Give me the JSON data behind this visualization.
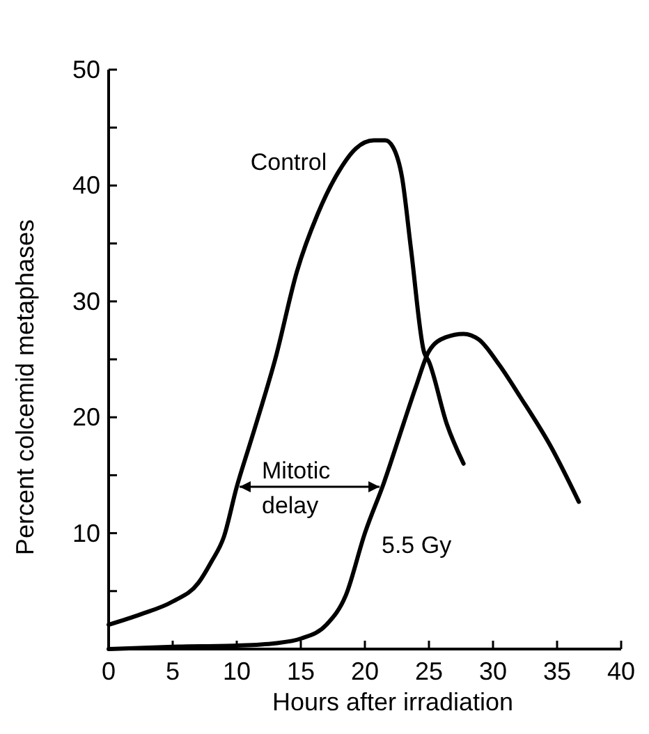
{
  "chart_data": {
    "type": "line",
    "xlabel": "Hours after irradiation",
    "ylabel": "Percent colcemid metaphases",
    "xlim": [
      0,
      40
    ],
    "ylim": [
      0,
      50
    ],
    "xticks": [
      0,
      5,
      10,
      15,
      20,
      25,
      30,
      35,
      40
    ],
    "yticks": [
      {
        "value": 0,
        "label": null
      },
      {
        "value": 5,
        "label": null
      },
      10,
      {
        "value": 15,
        "label": null
      },
      20,
      {
        "value": 25,
        "label": null
      },
      30,
      {
        "value": 35,
        "label": null
      },
      40,
      {
        "value": 45,
        "label": null
      },
      50
    ],
    "grid": false,
    "marker": "none",
    "line_style": "solid",
    "series": [
      {
        "name": "Control",
        "color": "#000000",
        "x": [
          0,
          2.5,
          5,
          7,
          8,
          9,
          10,
          11,
          12,
          13,
          14.7,
          16.3,
          17.9,
          19.3,
          20.7,
          21.6,
          22.2,
          22.9,
          23.6,
          24.6,
          25,
          26.4,
          27.7
        ],
        "values": [
          2.1,
          3,
          4.1,
          5.7,
          7.5,
          9.7,
          14,
          17.6,
          21.2,
          25,
          32.6,
          37.5,
          41.1,
          43.2,
          43.9,
          43.9,
          43.3,
          40.7,
          34.5,
          25.7,
          24.8,
          19.4,
          16
        ]
      },
      {
        "name": "5.5 Gy",
        "color": "#000000",
        "x": [
          0,
          5,
          10,
          13,
          15,
          17,
          18.5,
          20,
          21.5,
          23,
          24,
          25,
          26.3,
          27.7,
          28.9,
          30.5,
          32.1,
          34.5,
          36.7
        ],
        "values": [
          0,
          0.2,
          0.3,
          0.5,
          0.9,
          2.1,
          4.6,
          10,
          14.4,
          19.4,
          22.7,
          25.7,
          26.9,
          27.2,
          26.7,
          24.5,
          21.8,
          17.5,
          12.7
        ]
      }
    ],
    "annotations": [
      {
        "text": "Mitotic delay",
        "x": 10,
        "y": 14
      }
    ]
  }
}
